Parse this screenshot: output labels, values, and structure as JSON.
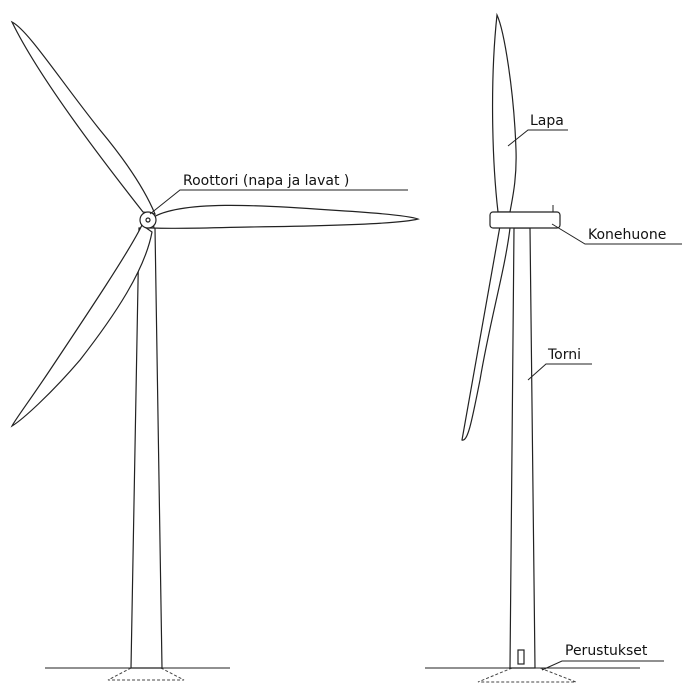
{
  "labels": {
    "rotor": "Roottori (napa ja lavat )",
    "blade": "Lapa",
    "nacelle": "Konehuone",
    "tower": "Torni",
    "foundation": "Perustukset"
  }
}
